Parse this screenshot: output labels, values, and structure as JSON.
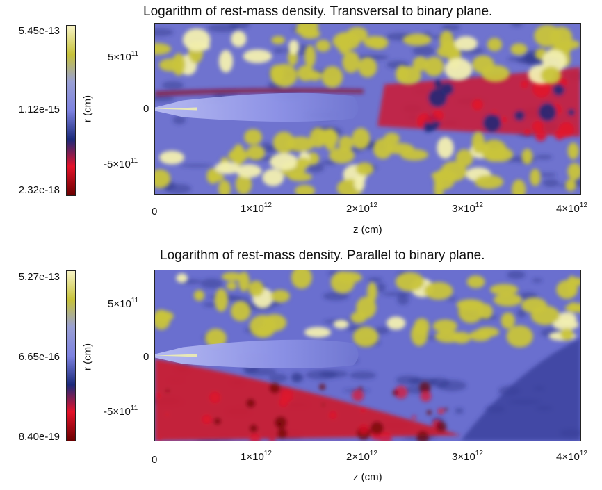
{
  "colorscale": [
    "#6a0000",
    "#e4132a",
    "#1b2a7a",
    "#7d82e0",
    "#9aa0d4",
    "#c6c23a",
    "#f7f3c5"
  ],
  "panels": [
    {
      "title": "Logarithm of rest-mass density. Transversal to binary plane.",
      "colorbar": {
        "max": "5.45e-13",
        "mid": "1.12e-15",
        "min": "2.32e-18"
      },
      "ylabel": "r (cm)",
      "xlabel": "z (cm)",
      "yticks": [
        {
          "mantissa": "5×10",
          "exp": "11"
        },
        {
          "mantissa": "0",
          "exp": ""
        },
        {
          "mantissa": "-5×10",
          "exp": "11"
        }
      ],
      "xticks": [
        {
          "mantissa": "0",
          "exp": ""
        },
        {
          "mantissa": "1×10",
          "exp": "12"
        },
        {
          "mantissa": "2×10",
          "exp": "12"
        },
        {
          "mantissa": "3×10",
          "exp": "12"
        },
        {
          "mantissa": "4×10",
          "exp": "12"
        }
      ]
    },
    {
      "title": "Logarithm of rest-mass density. Parallel to binary plane.",
      "colorbar": {
        "max": "5.27e-13",
        "mid": "6.65e-16",
        "min": "8.40e-19"
      },
      "ylabel": "r (cm)",
      "xlabel": "z (cm)",
      "yticks": [
        {
          "mantissa": "5×10",
          "exp": "11"
        },
        {
          "mantissa": "0",
          "exp": ""
        },
        {
          "mantissa": "-5×10",
          "exp": "11"
        }
      ],
      "xticks": [
        {
          "mantissa": "0",
          "exp": ""
        },
        {
          "mantissa": "1×10",
          "exp": "12"
        },
        {
          "mantissa": "2×10",
          "exp": "12"
        },
        {
          "mantissa": "3×10",
          "exp": "12"
        },
        {
          "mantissa": "4×10",
          "exp": "12"
        }
      ]
    }
  ],
  "chart_data": [
    {
      "type": "heatmap",
      "title": "Logarithm of rest-mass density. Transversal to binary plane.",
      "xlabel": "z (cm)",
      "ylabel": "r (cm)",
      "xlim": [
        0,
        4000000000000.0
      ],
      "ylim": [
        -800000000000.0,
        800000000000.0
      ],
      "x_ticks": [
        0,
        1000000000000.0,
        2000000000000.0,
        3000000000000.0,
        4000000000000.0
      ],
      "y_ticks": [
        -500000000000.0,
        0,
        500000000000.0
      ],
      "colorbar_range": [
        2.32e-18,
        5.45e-13
      ],
      "colorbar_mid": 1.12e-15,
      "log_scale": true
    },
    {
      "type": "heatmap",
      "title": "Logarithm of rest-mass density. Parallel to binary plane.",
      "xlabel": "z (cm)",
      "ylabel": "r (cm)",
      "xlim": [
        0,
        4000000000000.0
      ],
      "ylim": [
        -800000000000.0,
        800000000000.0
      ],
      "x_ticks": [
        0,
        1000000000000.0,
        2000000000000.0,
        3000000000000.0,
        4000000000000.0
      ],
      "y_ticks": [
        -500000000000.0,
        0,
        500000000000.0
      ],
      "colorbar_range": [
        8.4e-19,
        5.27e-13
      ],
      "colorbar_mid": 6.65e-16,
      "log_scale": true
    }
  ]
}
